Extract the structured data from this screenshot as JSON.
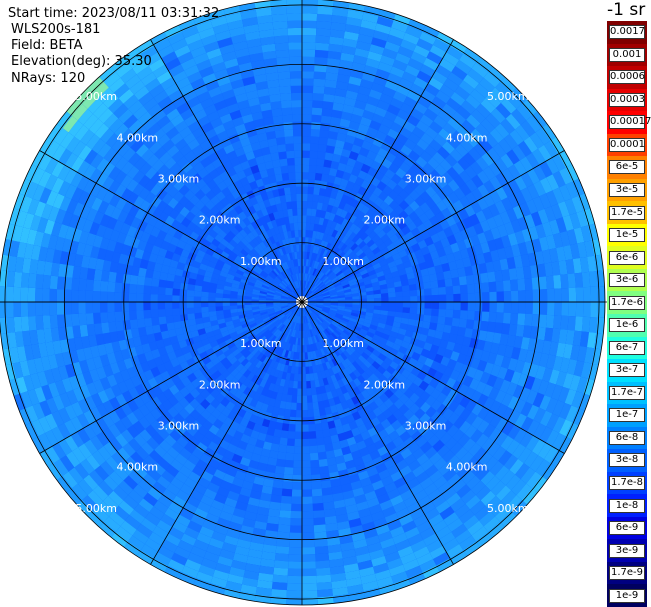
{
  "header": {
    "start_time": "Start time: 2023/08/11 03:31:32",
    "instrument": "WLS200s-181",
    "field": "Field: BETA",
    "elevation": "Elevation(deg): 35.30",
    "nrays": "NRays: 120"
  },
  "colorbar": {
    "unit": "-1 sr",
    "levels": [
      {
        "label": "0.0017",
        "color": "#800000"
      },
      {
        "label": "0.001",
        "color": "#a00000"
      },
      {
        "label": "0.0006",
        "color": "#c00000"
      },
      {
        "label": "0.0003",
        "color": "#e60000"
      },
      {
        "label": "0.00017",
        "color": "#ff0000"
      },
      {
        "label": "0.0001",
        "color": "#ff4000"
      },
      {
        "label": "6e-5",
        "color": "#ff8000"
      },
      {
        "label": "3e-5",
        "color": "#ffa000"
      },
      {
        "label": "1.7e-5",
        "color": "#ffc000"
      },
      {
        "label": "1e-5",
        "color": "#ffff00"
      },
      {
        "label": "6e-6",
        "color": "#e0ff20"
      },
      {
        "label": "3e-6",
        "color": "#b0ff50"
      },
      {
        "label": "1.7e-6",
        "color": "#80ff80"
      },
      {
        "label": "1e-6",
        "color": "#50ffb0"
      },
      {
        "label": "6e-7",
        "color": "#20ffe0"
      },
      {
        "label": "3e-7",
        "color": "#00e0ff"
      },
      {
        "label": "1.7e-7",
        "color": "#00c0ff"
      },
      {
        "label": "1e-7",
        "color": "#00a0ff"
      },
      {
        "label": "6e-8",
        "color": "#0080ff"
      },
      {
        "label": "3e-8",
        "color": "#0060ff"
      },
      {
        "label": "1.7e-8",
        "color": "#0040ff"
      },
      {
        "label": "1e-8",
        "color": "#0020ff"
      },
      {
        "label": "6e-9",
        "color": "#0000e0"
      },
      {
        "label": "3e-9",
        "color": "#0000b0"
      },
      {
        "label": "1.7e-9",
        "color": "#000080"
      },
      {
        "label": "1e-9",
        "color": "#000060"
      }
    ]
  },
  "chart_data": {
    "type": "heatmap",
    "projection": "polar PPI scan",
    "field": "BETA",
    "elevation_deg": 35.3,
    "nrays": 120,
    "range_rings_km": [
      1,
      2,
      3,
      4,
      5
    ],
    "ring_labels": [
      "1.00km",
      "2.00km",
      "3.00km",
      "4.00km",
      "5.00km"
    ],
    "max_range_km": 5.1,
    "spokes_deg": [
      0,
      30,
      60,
      90,
      120,
      150,
      180,
      210,
      240,
      270,
      300,
      330
    ],
    "dominant_value_range": "1e-8 to 1e-7",
    "outer_edge_value_range": "1e-7 to 3e-6",
    "colors": {
      "background": "#ffffff",
      "grid": "#000000",
      "ring_label": "#ffffff",
      "dominant": "#0d5cff"
    }
  }
}
